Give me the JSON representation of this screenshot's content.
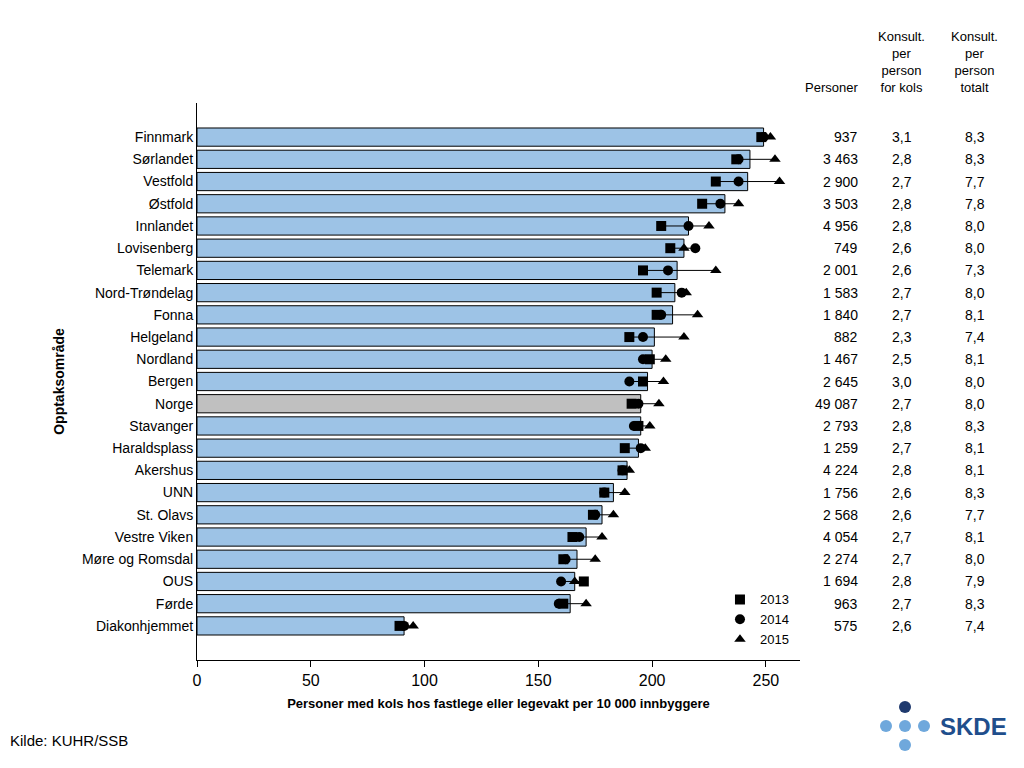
{
  "chart_data": {
    "type": "bar",
    "orientation": "horizontal",
    "xlabel": "Personer med kols hos fastlege eller legevakt per 10 000 innbyggere",
    "ylabel": "Opptaksområde",
    "categories": [
      "Finnmark",
      "Sørlandet",
      "Vestfold",
      "Østfold",
      "Innlandet",
      "Lovisenberg",
      "Telemark",
      "Nord-Trøndelag",
      "Fonna",
      "Helgeland",
      "Nordland",
      "Bergen",
      "Norge",
      "Stavanger",
      "Haraldsplass",
      "Akershus",
      "UNN",
      "St. Olavs",
      "Vestre Viken",
      "Møre og Romsdal",
      "OUS",
      "Førde",
      "Diakonhjemmet"
    ],
    "values": [
      249,
      243,
      242,
      232,
      216,
      214,
      211,
      210,
      209,
      201,
      200,
      198,
      195,
      195,
      194,
      189,
      183,
      178,
      171,
      167,
      166,
      164,
      91
    ],
    "colors": [
      "#9dc3e6",
      "#9dc3e6",
      "#9dc3e6",
      "#9dc3e6",
      "#9dc3e6",
      "#9dc3e6",
      "#9dc3e6",
      "#9dc3e6",
      "#9dc3e6",
      "#9dc3e6",
      "#9dc3e6",
      "#9dc3e6",
      "#c0c0c0",
      "#9dc3e6",
      "#9dc3e6",
      "#9dc3e6",
      "#9dc3e6",
      "#9dc3e6",
      "#9dc3e6",
      "#9dc3e6",
      "#9dc3e6",
      "#9dc3e6",
      "#9dc3e6"
    ],
    "series": [
      {
        "name": "2013",
        "type": "scatter",
        "marker": "square",
        "color": "#000000",
        "values": [
          248,
          237,
          228,
          222,
          204,
          208,
          196,
          202,
          202,
          190,
          199,
          196,
          191,
          194,
          188,
          187,
          179,
          174,
          165,
          161,
          170,
          161,
          89
        ]
      },
      {
        "name": "2014",
        "type": "scatter",
        "marker": "circle",
        "color": "#000000",
        "values": [
          249,
          238,
          238,
          230,
          216,
          219,
          207,
          213,
          204,
          196,
          196,
          190,
          194,
          192,
          195,
          187,
          179,
          175,
          168,
          162,
          160,
          159,
          91
        ]
      },
      {
        "name": "2015",
        "type": "scatter",
        "marker": "triangle-up",
        "color": "#000000",
        "values": [
          252,
          254,
          256,
          238,
          225,
          214,
          228,
          215,
          220,
          214,
          206,
          205,
          203,
          199,
          197,
          190,
          188,
          183,
          178,
          175,
          166,
          171,
          95
        ]
      }
    ],
    "xlim": [
      0,
      265
    ],
    "xticks": [
      0,
      50,
      100,
      150,
      200,
      250
    ],
    "legend": "lower right",
    "grid": false,
    "table": {
      "headers": [
        [
          "Personer"
        ],
        [
          "Konsult.",
          "per",
          "person",
          "for kols"
        ],
        [
          "Konsult.",
          "per",
          "person",
          "totalt"
        ]
      ],
      "columns": [
        [
          "937",
          "3 463",
          "2 900",
          "3 503",
          "4 956",
          "749",
          "2 001",
          "1 583",
          "1 840",
          "882",
          "1 467",
          "2 645",
          "49 087",
          "2 793",
          "1 259",
          "4 224",
          "1 756",
          "2 568",
          "4 054",
          "2 274",
          "1 694",
          "963",
          "575"
        ],
        [
          "3,1",
          "2,8",
          "2,7",
          "2,8",
          "2,8",
          "2,6",
          "2,6",
          "2,7",
          "2,7",
          "2,3",
          "2,5",
          "3,0",
          "2,7",
          "2,8",
          "2,7",
          "2,8",
          "2,6",
          "2,6",
          "2,7",
          "2,7",
          "2,8",
          "2,7",
          "2,6"
        ],
        [
          "8,3",
          "8,3",
          "7,7",
          "7,8",
          "8,0",
          "8,0",
          "7,3",
          "8,0",
          "8,1",
          "7,4",
          "8,1",
          "8,0",
          "8,0",
          "8,3",
          "8,1",
          "8,1",
          "8,3",
          "7,7",
          "8,1",
          "8,0",
          "7,9",
          "8,3",
          "7,4"
        ]
      ]
    },
    "source": "Kilde: KUHR/SSB",
    "logo_text": "SKDE"
  }
}
